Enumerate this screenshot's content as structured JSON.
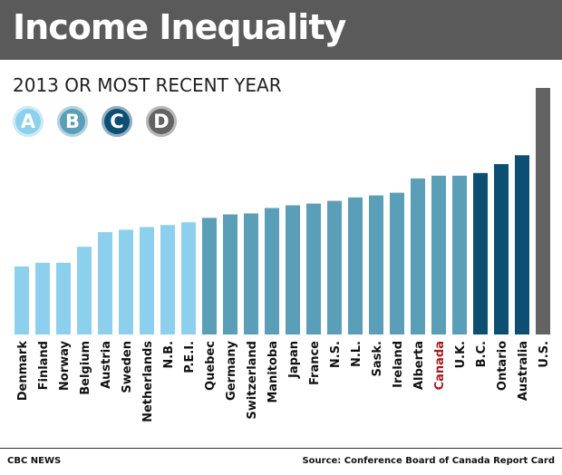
{
  "header": {
    "title": "Income Inequality"
  },
  "subtitle": "2013 OR MOST RECENT YEAR",
  "legend": [
    {
      "label": "A",
      "color": "#8dd0ed"
    },
    {
      "label": "B",
      "color": "#5b9eb7"
    },
    {
      "label": "C",
      "color": "#0d4f73"
    },
    {
      "label": "D",
      "color": "#636363"
    }
  ],
  "highlight_color": "#a31d21",
  "chart_data": {
    "type": "bar",
    "title": "Income Inequality",
    "subtitle": "2013 OR MOST RECENT YEAR",
    "ylim": [
      0,
      100
    ],
    "grid": false,
    "categories": [
      "Denmark",
      "Finland",
      "Norway",
      "Belgium",
      "Austria",
      "Sweden",
      "Netherlands",
      "N.B.",
      "P.E.I.",
      "Quebec",
      "Germany",
      "Switzerland",
      "Manitoba",
      "Japan",
      "France",
      "N.S.",
      "N.L.",
      "Sask.",
      "Ireland",
      "Alberta",
      "Canada",
      "U.K.",
      "B.C.",
      "Ontario",
      "Australia",
      "U.S."
    ],
    "values": [
      27.6,
      29.1,
      29.1,
      35.6,
      41.5,
      42.5,
      43.6,
      44.4,
      45.5,
      47.3,
      48.7,
      49.1,
      51.3,
      52.4,
      53.1,
      54.2,
      55.6,
      56.4,
      57.5,
      63.3,
      64.4,
      64.4,
      65.5,
      69.1,
      72.7,
      100
    ],
    "grades": [
      "A",
      "A",
      "A",
      "A",
      "A",
      "A",
      "A",
      "A",
      "A",
      "B",
      "B",
      "B",
      "B",
      "B",
      "B",
      "B",
      "B",
      "B",
      "B",
      "B",
      "B",
      "B",
      "C",
      "C",
      "C",
      "D"
    ],
    "highlight": "Canada"
  },
  "footer": {
    "left": "CBC NEWS",
    "right": "Source: Conference Board of Canada Report Card"
  }
}
